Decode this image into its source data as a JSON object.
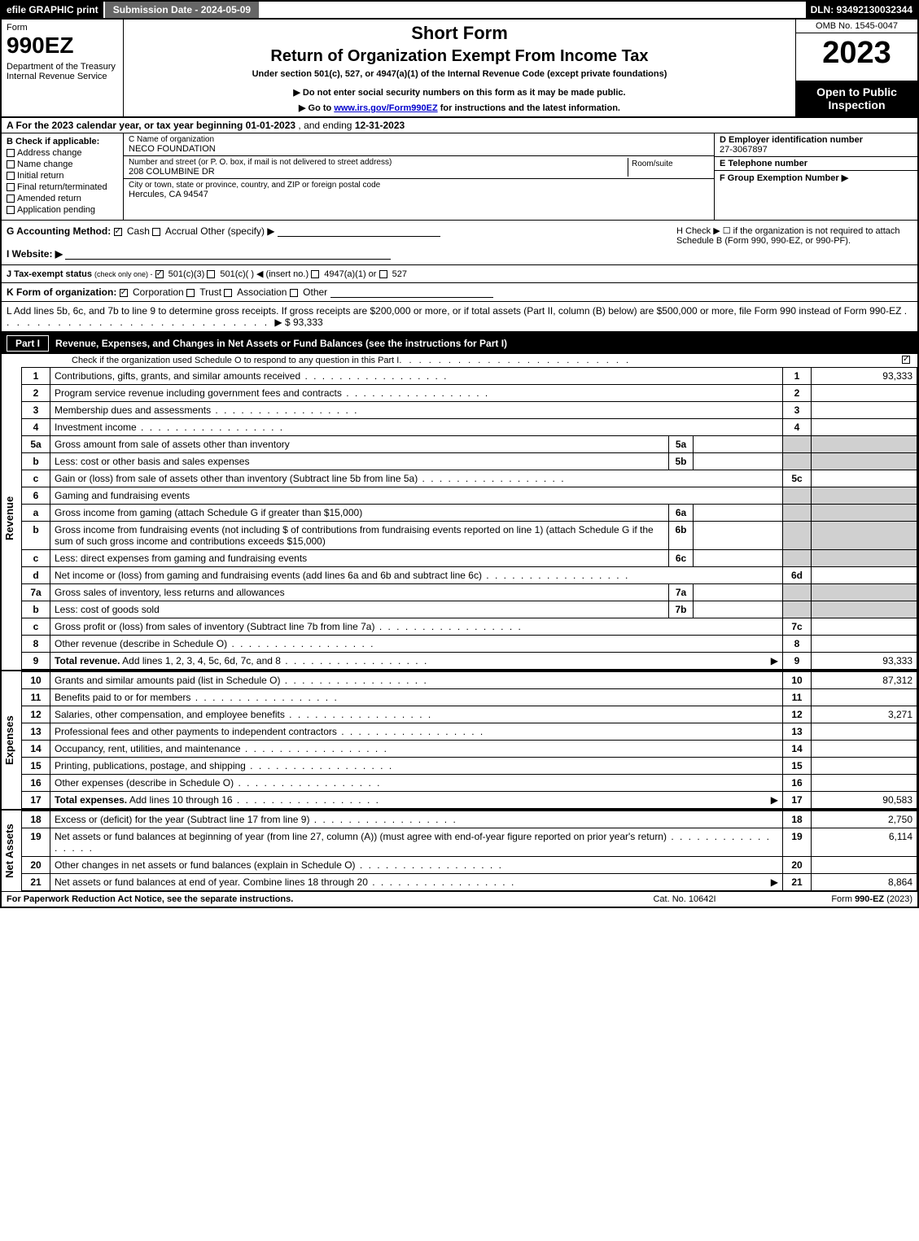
{
  "top": {
    "efile": "efile GRAPHIC print",
    "subdate": "Submission Date - 2024-05-09",
    "dln": "DLN: 93492130032344"
  },
  "header": {
    "form_label": "Form",
    "form_number": "990EZ",
    "dept": "Department of the Treasury\nInternal Revenue Service",
    "short_form": "Short Form",
    "return_title": "Return of Organization Exempt From Income Tax",
    "under_section": "Under section 501(c), 527, or 4947(a)(1) of the Internal Revenue Code (except private foundations)",
    "do_not": "▶ Do not enter social security numbers on this form as it may be made public.",
    "goto_prefix": "▶ Go to ",
    "goto_link": "www.irs.gov/Form990EZ",
    "goto_suffix": " for instructions and the latest information.",
    "omb": "OMB No. 1545-0047",
    "year": "2023",
    "open_public": "Open to Public Inspection"
  },
  "line_a": {
    "prefix": "A  For the 2023 calendar year, or tax year beginning ",
    "begin": "01-01-2023",
    "mid": " , and ending ",
    "end": "12-31-2023"
  },
  "section_b": {
    "label": "B  Check if applicable:",
    "items": [
      "Address change",
      "Name change",
      "Initial return",
      "Final return/terminated",
      "Amended return",
      "Application pending"
    ]
  },
  "section_c": {
    "name_label": "C Name of organization",
    "name_val": "NECO FOUNDATION",
    "addr_label": "Number and street (or P. O. box, if mail is not delivered to street address)",
    "addr_val": "208 COLUMBINE DR",
    "room_label": "Room/suite",
    "city_label": "City or town, state or province, country, and ZIP or foreign postal code",
    "city_val": "Hercules, CA  94547"
  },
  "section_d": {
    "d_label": "D Employer identification number",
    "d_val": "27-3067897",
    "e_label": "E Telephone number",
    "e_val": "",
    "f_label": "F Group Exemption Number  ▶",
    "f_val": ""
  },
  "row_g": {
    "g_label": "G Accounting Method:",
    "cash": "Cash",
    "accrual": "Accrual",
    "other": "Other (specify) ▶",
    "i_label": "I Website: ▶",
    "h_text": "H  Check ▶  ☐  if the organization is not required to attach Schedule B (Form 990, 990-EZ, or 990-PF)."
  },
  "row_j": {
    "label": "J Tax-exempt status",
    "note": "(check only one) -",
    "opt1": "501(c)(3)",
    "opt2": "501(c)(  ) ◀ (insert no.)",
    "opt3": "4947(a)(1) or",
    "opt4": "527"
  },
  "row_k": {
    "label": "K Form of organization:",
    "corp": "Corporation",
    "trust": "Trust",
    "assoc": "Association",
    "other": "Other"
  },
  "row_l": {
    "text": "L Add lines 5b, 6c, and 7b to line 9 to determine gross receipts. If gross receipts are $200,000 or more, or if total assets (Part II, column (B) below) are $500,000 or more, file Form 990 instead of Form 990-EZ",
    "arrow": "▶ $",
    "val": "93,333"
  },
  "part1": {
    "label": "Part I",
    "title": "Revenue, Expenses, and Changes in Net Assets or Fund Balances (see the instructions for Part I)",
    "check_text": "Check if the organization used Schedule O to respond to any question in this Part I"
  },
  "sections": {
    "revenue": "Revenue",
    "expenses": "Expenses",
    "netassets": "Net Assets"
  },
  "lines": [
    {
      "n": "1",
      "d": "Contributions, gifts, grants, and similar amounts received",
      "r": "1",
      "v": "93,333"
    },
    {
      "n": "2",
      "d": "Program service revenue including government fees and contracts",
      "r": "2",
      "v": ""
    },
    {
      "n": "3",
      "d": "Membership dues and assessments",
      "r": "3",
      "v": ""
    },
    {
      "n": "4",
      "d": "Investment income",
      "r": "4",
      "v": ""
    },
    {
      "n": "5a",
      "d": "Gross amount from sale of assets other than inventory",
      "sn": "5a",
      "sv": "",
      "shade": true
    },
    {
      "n": "b",
      "d": "Less: cost or other basis and sales expenses",
      "sn": "5b",
      "sv": "",
      "shade": true
    },
    {
      "n": "c",
      "d": "Gain or (loss) from sale of assets other than inventory (Subtract line 5b from line 5a)",
      "r": "5c",
      "v": ""
    },
    {
      "n": "6",
      "d": "Gaming and fundraising events",
      "shade": true
    },
    {
      "n": "a",
      "d": "Gross income from gaming (attach Schedule G if greater than $15,000)",
      "sn": "6a",
      "sv": "",
      "shade": true
    },
    {
      "n": "b",
      "d": "Gross income from fundraising events (not including $                    of contributions from fundraising events reported on line 1) (attach Schedule G if the sum of such gross income and contributions exceeds $15,000)",
      "sn": "6b",
      "sv": "",
      "shade": true
    },
    {
      "n": "c",
      "d": "Less: direct expenses from gaming and fundraising events",
      "sn": "6c",
      "sv": "",
      "shade": true
    },
    {
      "n": "d",
      "d": "Net income or (loss) from gaming and fundraising events (add lines 6a and 6b and subtract line 6c)",
      "r": "6d",
      "v": ""
    },
    {
      "n": "7a",
      "d": "Gross sales of inventory, less returns and allowances",
      "sn": "7a",
      "sv": "",
      "shade": true
    },
    {
      "n": "b",
      "d": "Less: cost of goods sold",
      "sn": "7b",
      "sv": "",
      "shade": true
    },
    {
      "n": "c",
      "d": "Gross profit or (loss) from sales of inventory (Subtract line 7b from line 7a)",
      "r": "7c",
      "v": ""
    },
    {
      "n": "8",
      "d": "Other revenue (describe in Schedule O)",
      "r": "8",
      "v": ""
    },
    {
      "n": "9",
      "d": "Total revenue. Add lines 1, 2, 3, 4, 5c, 6d, 7c, and 8",
      "r": "9",
      "v": "93,333",
      "bold": true,
      "arrow": true
    }
  ],
  "exp_lines": [
    {
      "n": "10",
      "d": "Grants and similar amounts paid (list in Schedule O)",
      "r": "10",
      "v": "87,312"
    },
    {
      "n": "11",
      "d": "Benefits paid to or for members",
      "r": "11",
      "v": ""
    },
    {
      "n": "12",
      "d": "Salaries, other compensation, and employee benefits",
      "r": "12",
      "v": "3,271"
    },
    {
      "n": "13",
      "d": "Professional fees and other payments to independent contractors",
      "r": "13",
      "v": ""
    },
    {
      "n": "14",
      "d": "Occupancy, rent, utilities, and maintenance",
      "r": "14",
      "v": ""
    },
    {
      "n": "15",
      "d": "Printing, publications, postage, and shipping",
      "r": "15",
      "v": ""
    },
    {
      "n": "16",
      "d": "Other expenses (describe in Schedule O)",
      "r": "16",
      "v": ""
    },
    {
      "n": "17",
      "d": "Total expenses. Add lines 10 through 16",
      "r": "17",
      "v": "90,583",
      "bold": true,
      "arrow": true
    }
  ],
  "net_lines": [
    {
      "n": "18",
      "d": "Excess or (deficit) for the year (Subtract line 17 from line 9)",
      "r": "18",
      "v": "2,750"
    },
    {
      "n": "19",
      "d": "Net assets or fund balances at beginning of year (from line 27, column (A)) (must agree with end-of-year figure reported on prior year's return)",
      "r": "19",
      "v": "6,114"
    },
    {
      "n": "20",
      "d": "Other changes in net assets or fund balances (explain in Schedule O)",
      "r": "20",
      "v": ""
    },
    {
      "n": "21",
      "d": "Net assets or fund balances at end of year. Combine lines 18 through 20",
      "r": "21",
      "v": "8,864",
      "arrow": true
    }
  ],
  "footer": {
    "left": "For Paperwork Reduction Act Notice, see the separate instructions.",
    "mid": "Cat. No. 10642I",
    "right_prefix": "Form ",
    "right_form": "990-EZ",
    "right_suffix": " (2023)"
  },
  "colors": {
    "black": "#000000",
    "white": "#ffffff",
    "shade": "#d0d0d0",
    "topbar_gray": "#666666"
  }
}
